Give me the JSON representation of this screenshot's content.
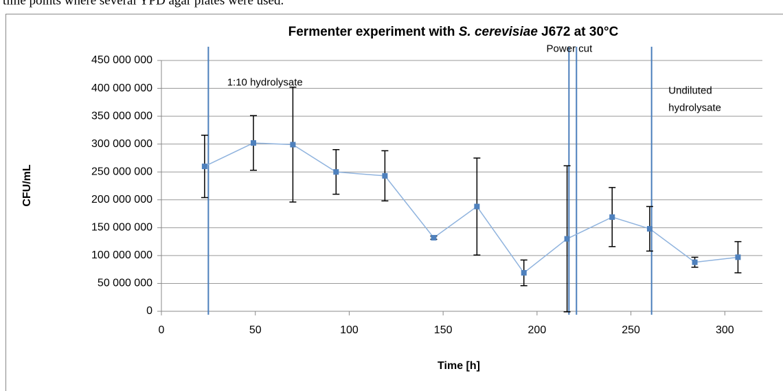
{
  "caption": "time points where several YPD agar plates were used.",
  "chart_data": {
    "type": "scatter",
    "title": [
      "Fermenter experiment with ",
      "S. cerevisiae",
      " J672 at 30°C"
    ],
    "x_label": "Time [h]",
    "y_label": "CFU/mL",
    "x": [
      23,
      49,
      70,
      93,
      119,
      145,
      168,
      193,
      216,
      240,
      260,
      284,
      307
    ],
    "series": [
      {
        "color": "#4f81bd",
        "line_color": "#8fb3de",
        "values": [
          260000000,
          302000000,
          299000000,
          250000000,
          243000000,
          132000000,
          188000000,
          69000000,
          130000000,
          169000000,
          148000000,
          88000000,
          97000000
        ],
        "errors": [
          56000000,
          49000000,
          103000000,
          40000000,
          45000000,
          3000000,
          87000000,
          23000000,
          131000000,
          53000000,
          40000000,
          9000000,
          28000000
        ]
      }
    ],
    "xlim": [
      0,
      320
    ],
    "xticks": [
      0,
      50,
      100,
      150,
      200,
      250,
      300
    ],
    "ylim": [
      0,
      450000000
    ],
    "yticks": [
      {
        "value": 0,
        "label": "0"
      },
      {
        "value": 50000000,
        "label": "50 000 000"
      },
      {
        "value": 100000000,
        "label": "100 000 000"
      },
      {
        "value": 150000000,
        "label": "150 000 000"
      },
      {
        "value": 200000000,
        "label": "200 000 000"
      },
      {
        "value": 250000000,
        "label": "250 000 000"
      },
      {
        "value": 300000000,
        "label": "300 000 000"
      },
      {
        "value": 350000000,
        "label": "350 000 000"
      },
      {
        "value": 400000000,
        "label": "400 000 000"
      },
      {
        "value": {
          "value": 450000000,
          "label": "450 000 000"
        },
        "label": "450 000 000"
      }
    ],
    "grid": true,
    "vlines": {
      "color": "#4a7ebb",
      "x": [
        25,
        217,
        221,
        261
      ]
    },
    "annotations": [
      {
        "x": 35,
        "y": 410000000,
        "lines": [
          "1:10 hydrolysate"
        ]
      },
      {
        "x": 205,
        "y": 470000000,
        "lines": [
          "Power cut"
        ]
      },
      {
        "x": 270,
        "y": 395000000,
        "lines": [
          "Undiluted",
          "hydrolysate"
        ]
      }
    ]
  }
}
